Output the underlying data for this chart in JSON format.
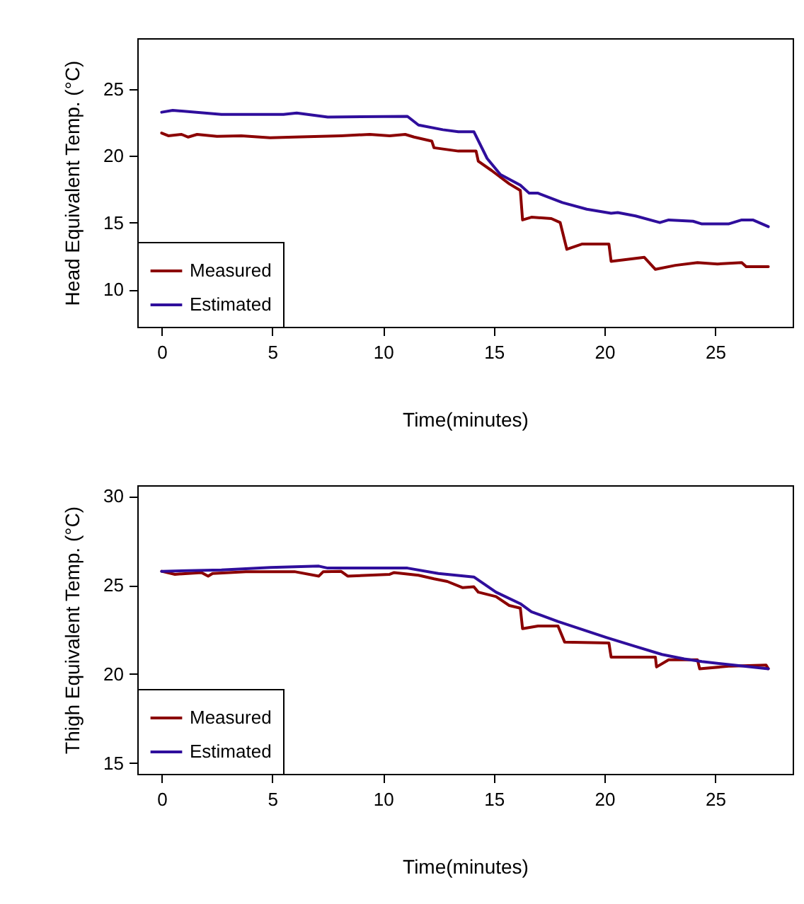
{
  "chart_data": [
    {
      "type": "line",
      "xlabel": "Time(minutes)",
      "ylabel": "Head Equivalent Temp. (°C)",
      "xlim": [
        -1.1,
        28.5
      ],
      "ylim": [
        7.2,
        28.8
      ],
      "xticks": [
        0,
        5,
        10,
        15,
        20,
        25
      ],
      "yticks": [
        10,
        15,
        20,
        25
      ],
      "legend": "bottom left",
      "grid": false,
      "series": [
        {
          "name": "Measured",
          "color": "#8b0000",
          "x": [
            0,
            0.3,
            0.9,
            1.2,
            1.6,
            2.5,
            3.6,
            4.9,
            6.0,
            8.1,
            9.4,
            10.3,
            11.0,
            11.4,
            12.2,
            12.3,
            13.4,
            14.2,
            14.3,
            14.9,
            15.7,
            16.2,
            16.3,
            16.7,
            17.6,
            18.0,
            18.3,
            19.0,
            20.2,
            20.3,
            21.8,
            22.3,
            23.2,
            24.2,
            25.1,
            26.2,
            26.4,
            27.4
          ],
          "values": [
            21.7,
            21.5,
            21.6,
            21.4,
            21.6,
            21.45,
            21.5,
            21.35,
            21.4,
            21.5,
            21.6,
            21.5,
            21.6,
            21.4,
            21.1,
            20.6,
            20.35,
            20.35,
            19.6,
            18.9,
            17.9,
            17.4,
            15.2,
            15.4,
            15.3,
            15.0,
            13.0,
            13.4,
            13.4,
            12.1,
            12.4,
            11.5,
            11.8,
            12.0,
            11.9,
            12.0,
            11.7,
            11.7
          ]
        },
        {
          "name": "Estimated",
          "color": "#2f0e9c",
          "x": [
            0,
            0.5,
            2.7,
            5.5,
            6.1,
            7.5,
            11.1,
            11.6,
            12.7,
            13.4,
            14.1,
            14.7,
            15.3,
            16.2,
            16.6,
            17.0,
            18.1,
            19.2,
            20.3,
            20.6,
            21.4,
            22.5,
            22.9,
            24.0,
            24.4,
            25.6,
            26.2,
            26.7,
            27.4
          ],
          "values": [
            23.26,
            23.4,
            23.1,
            23.1,
            23.2,
            22.9,
            22.95,
            22.3,
            21.95,
            21.8,
            21.8,
            19.8,
            18.6,
            17.8,
            17.2,
            17.2,
            16.5,
            16.0,
            15.7,
            15.75,
            15.5,
            15.0,
            15.2,
            15.1,
            14.9,
            14.9,
            15.2,
            15.2,
            14.7
          ]
        }
      ]
    },
    {
      "type": "line",
      "xlabel": "Time(minutes)",
      "ylabel": "Thigh Equivalent Temp. (°C)",
      "xlim": [
        -1.1,
        28.5
      ],
      "ylim": [
        14.4,
        30.6
      ],
      "xticks": [
        0,
        5,
        10,
        15,
        20,
        25
      ],
      "yticks": [
        15,
        20,
        25,
        30
      ],
      "legend": "bottom left",
      "grid": false,
      "series": [
        {
          "name": "Measured",
          "color": "#8b0000",
          "x": [
            0,
            0.6,
            1.8,
            2.1,
            2.3,
            3.8,
            6.0,
            7.1,
            7.3,
            8.1,
            8.4,
            10.3,
            10.5,
            11.6,
            12.3,
            12.9,
            13.6,
            14.1,
            14.3,
            15.1,
            15.7,
            16.2,
            16.3,
            17.0,
            17.9,
            18.2,
            20.2,
            20.3,
            22.3,
            22.35,
            22.9,
            24.2,
            24.3,
            25.7,
            27.3,
            27.4
          ],
          "values": [
            25.77,
            25.6,
            25.7,
            25.5,
            25.65,
            25.75,
            25.75,
            25.5,
            25.75,
            25.77,
            25.5,
            25.6,
            25.7,
            25.55,
            25.35,
            25.2,
            24.85,
            24.9,
            24.6,
            24.35,
            23.85,
            23.7,
            22.55,
            22.7,
            22.7,
            21.8,
            21.75,
            20.95,
            20.95,
            20.4,
            20.8,
            20.8,
            20.3,
            20.45,
            20.5,
            20.3
          ]
        },
        {
          "name": "Estimated",
          "color": "#2f0e9c",
          "x": [
            0,
            2.7,
            4.9,
            7.1,
            7.5,
            11.1,
            12.5,
            14.1,
            15.1,
            16.2,
            16.7,
            17.9,
            20.1,
            21.4,
            22.6,
            23.6,
            24.4,
            27.4
          ],
          "values": [
            25.77,
            25.85,
            25.98,
            26.06,
            25.95,
            25.95,
            25.65,
            25.45,
            24.6,
            23.95,
            23.5,
            22.95,
            22.05,
            21.55,
            21.1,
            20.85,
            20.7,
            20.3
          ]
        }
      ]
    }
  ]
}
